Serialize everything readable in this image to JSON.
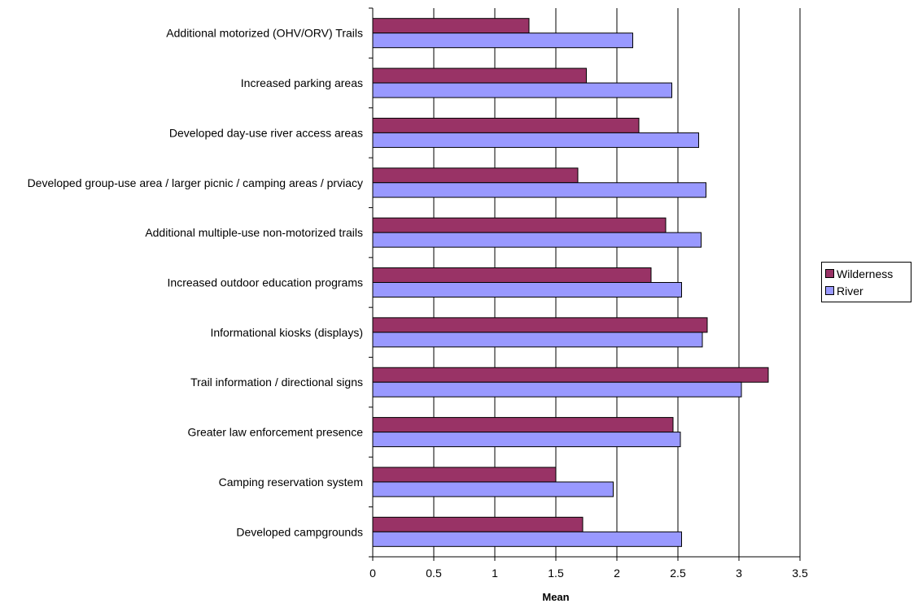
{
  "chart_data": {
    "type": "bar",
    "orientation": "horizontal",
    "categories": [
      "Developed campgrounds",
      "Camping reservation system",
      "Greater law enforcement presence",
      "Trail information / directional signs",
      "Informational kiosks (displays)",
      "Increased outdoor education programs",
      "Additional multiple-use  non-motorized trails",
      "Developed group-use area / larger picnic / camping areas / prviacy",
      "Developed day-use river access areas",
      "Increased parking areas",
      "Additional motorized (OHV/ORV) Trails"
    ],
    "series": [
      {
        "name": "Wilderness",
        "color": "#993366",
        "values": [
          1.72,
          1.5,
          2.46,
          3.24,
          2.74,
          2.28,
          2.4,
          1.68,
          2.18,
          1.75,
          1.28
        ]
      },
      {
        "name": "River",
        "color": "#9999FF",
        "values": [
          2.53,
          1.97,
          2.52,
          3.02,
          2.7,
          2.53,
          2.69,
          2.73,
          2.67,
          2.45,
          2.13
        ]
      }
    ],
    "title": "",
    "xlabel": "Mean",
    "ylabel": "",
    "xlim": [
      0,
      3.5
    ],
    "xticks": [
      "0",
      "0.5",
      "1",
      "1.5",
      "2",
      "2.5",
      "3",
      "3.5"
    ],
    "grid": "vertical at major ticks",
    "legend_position": "right"
  }
}
